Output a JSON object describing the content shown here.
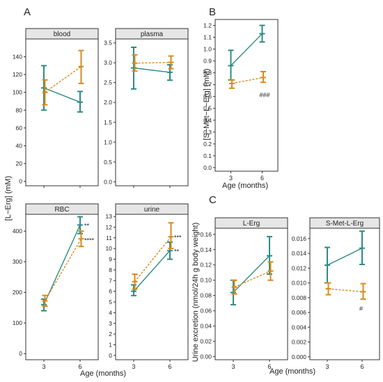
{
  "colors": {
    "series_a": "#2e8b84",
    "series_b": "#d98a1a",
    "strip_bg": "#e6e6e6",
    "strip_border": "#333333",
    "axis": "#333333",
    "text": "#222222"
  },
  "panel_letters": {
    "a": "A",
    "b": "B",
    "c": "C"
  },
  "shared_labels": {
    "y_label_A": "[L−Erg] (mM)",
    "x_label_A": "Age (months)",
    "y_label_B": "[S−Met−L−Erg] (mM)",
    "x_label_B": "Age (months)",
    "y_label_C": "Urine excretion (nmol/24h  g body weight)",
    "x_label_C": "Age (months)"
  },
  "chart_data": [
    {
      "id": "blood",
      "type": "line",
      "title": "blood",
      "group": "A",
      "categories": [
        "3",
        "6"
      ],
      "ylim": [
        -5,
        160
      ],
      "yticks": [
        "0",
        "20",
        "40",
        "60",
        "80",
        "100",
        "120",
        "140"
      ],
      "yvals": [
        0,
        20,
        40,
        60,
        80,
        100,
        120,
        140
      ],
      "series": [
        {
          "style": "solid",
          "values": [
            105,
            89
          ],
          "err_low": [
            80,
            78
          ],
          "err_high": [
            130,
            101
          ]
        },
        {
          "style": "dashed",
          "values": [
            100,
            129
          ],
          "err_low": [
            86,
            110
          ],
          "err_high": [
            114,
            147
          ]
        }
      ],
      "annotations": []
    },
    {
      "id": "plasma",
      "type": "line",
      "title": "plasma",
      "group": "A",
      "categories": [
        "3",
        "6"
      ],
      "ylim": [
        -0.1,
        3.6
      ],
      "yticks": [
        "0.0",
        "0.5",
        "1.0",
        "1.5",
        "2.0",
        "2.5",
        "3.0",
        "3.5"
      ],
      "yvals": [
        0,
        0.5,
        1.0,
        1.5,
        2.0,
        2.5,
        3.0,
        3.5
      ],
      "series": [
        {
          "style": "solid",
          "values": [
            2.87,
            2.76
          ],
          "err_low": [
            2.34,
            2.56
          ],
          "err_high": [
            3.39,
            2.95
          ]
        },
        {
          "style": "dashed",
          "values": [
            2.99,
            3.01
          ],
          "err_low": [
            2.79,
            2.85
          ],
          "err_high": [
            3.2,
            3.17
          ]
        }
      ],
      "annotations": []
    },
    {
      "id": "rbc",
      "type": "line",
      "title": "RBC",
      "group": "A",
      "categories": [
        "3",
        "6"
      ],
      "ylim": [
        -20,
        455
      ],
      "yticks": [
        "0",
        "100",
        "200",
        "300",
        "400"
      ],
      "yvals": [
        0,
        100,
        200,
        300,
        400
      ],
      "series": [
        {
          "style": "solid",
          "values": [
            160,
            420
          ],
          "err_low": [
            140,
            392
          ],
          "err_high": [
            178,
            447
          ]
        },
        {
          "style": "dashed",
          "values": [
            172,
            375
          ],
          "err_low": [
            155,
            350
          ],
          "err_high": [
            190,
            400
          ]
        }
      ],
      "annotations": [
        {
          "text": "**",
          "x": "6",
          "y": 420
        },
        {
          "text": "****",
          "x": "6",
          "y": 372
        }
      ]
    },
    {
      "id": "urine",
      "type": "line",
      "title": "urine",
      "group": "A",
      "categories": [
        "3",
        "6"
      ],
      "ylim": [
        -0.4,
        13.2
      ],
      "yticks": [
        "0",
        "1",
        "2",
        "3",
        "4",
        "5",
        "6",
        "7",
        "8",
        "9",
        "10",
        "11",
        "12",
        "13"
      ],
      "yvals": [
        0,
        1,
        2,
        3,
        4,
        5,
        6,
        7,
        8,
        9,
        10,
        11,
        12,
        13
      ],
      "series": [
        {
          "style": "solid",
          "values": [
            6.0,
            9.8
          ],
          "err_low": [
            5.6,
            9.0
          ],
          "err_high": [
            6.6,
            10.6
          ]
        },
        {
          "style": "dashed",
          "values": [
            6.9,
            11.1
          ],
          "err_low": [
            6.2,
            10.0
          ],
          "err_high": [
            7.6,
            12.4
          ]
        }
      ],
      "annotations": [
        {
          "text": "***",
          "x": "6",
          "y": 11.1
        },
        {
          "text": "**",
          "x": "6",
          "y": 9.8
        }
      ]
    },
    {
      "id": "smet",
      "type": "line",
      "title": "",
      "group": "B",
      "categories": [
        "3",
        "6"
      ],
      "ylim": [
        -0.03,
        1.25
      ],
      "yticks": [
        "0.0",
        "0.1",
        "0.2",
        "0.3",
        "0.4",
        "0.5",
        "0.6",
        "0.7",
        "0.8",
        "0.9",
        "1.0",
        "1.1",
        "1.2"
      ],
      "yvals": [
        0,
        0.1,
        0.2,
        0.3,
        0.4,
        0.5,
        0.6,
        0.7,
        0.8,
        0.9,
        1.0,
        1.1,
        1.2
      ],
      "series": [
        {
          "style": "solid",
          "values": [
            0.86,
            1.13
          ],
          "err_low": [
            0.74,
            1.06
          ],
          "err_high": [
            0.99,
            1.2
          ]
        },
        {
          "style": "dashed",
          "values": [
            0.71,
            0.76
          ],
          "err_low": [
            0.67,
            0.72
          ],
          "err_high": [
            0.74,
            0.81
          ]
        }
      ],
      "annotations": [
        {
          "text": "###",
          "x": "6",
          "y": 0.62
        }
      ]
    },
    {
      "id": "lerg_urine",
      "type": "line",
      "title": "L-Erg",
      "group": "C",
      "categories": [
        "3",
        "6"
      ],
      "ylim": [
        -0.004,
        0.168
      ],
      "yticks": [
        "0.00",
        "0.02",
        "0.04",
        "0.06",
        "0.08",
        "0.10",
        "0.12",
        "0.14",
        "0.16"
      ],
      "yvals": [
        0,
        0.02,
        0.04,
        0.06,
        0.08,
        0.1,
        0.12,
        0.14,
        0.16
      ],
      "series": [
        {
          "style": "solid",
          "values": [
            0.084,
            0.132
          ],
          "err_low": [
            0.068,
            0.108
          ],
          "err_high": [
            0.1,
            0.157
          ]
        },
        {
          "style": "dashed",
          "values": [
            0.091,
            0.112
          ],
          "err_low": [
            0.082,
            0.1
          ],
          "err_high": [
            0.1,
            0.124
          ]
        }
      ],
      "annotations": []
    },
    {
      "id": "smet_urine",
      "type": "line",
      "title": "S-Met-L-Erg",
      "group": "C",
      "categories": [
        "3",
        "6"
      ],
      "ylim": [
        -0.0004,
        0.0174
      ],
      "yticks": [
        "0.000",
        "0.002",
        "0.004",
        "0.006",
        "0.008",
        "0.010",
        "0.012",
        "0.014",
        "0.016"
      ],
      "yvals": [
        0,
        0.002,
        0.004,
        0.006,
        0.008,
        0.01,
        0.012,
        0.014,
        0.016
      ],
      "series": [
        {
          "style": "solid",
          "values": [
            0.0124,
            0.0147
          ],
          "err_low": [
            0.01,
            0.0125
          ],
          "err_high": [
            0.0148,
            0.017
          ]
        },
        {
          "style": "dashed",
          "values": [
            0.0092,
            0.0088
          ],
          "err_low": [
            0.0084,
            0.0078
          ],
          "err_high": [
            0.01,
            0.0099
          ]
        }
      ],
      "annotations": [
        {
          "text": "#",
          "x": "6",
          "y": 0.0066
        }
      ]
    }
  ]
}
